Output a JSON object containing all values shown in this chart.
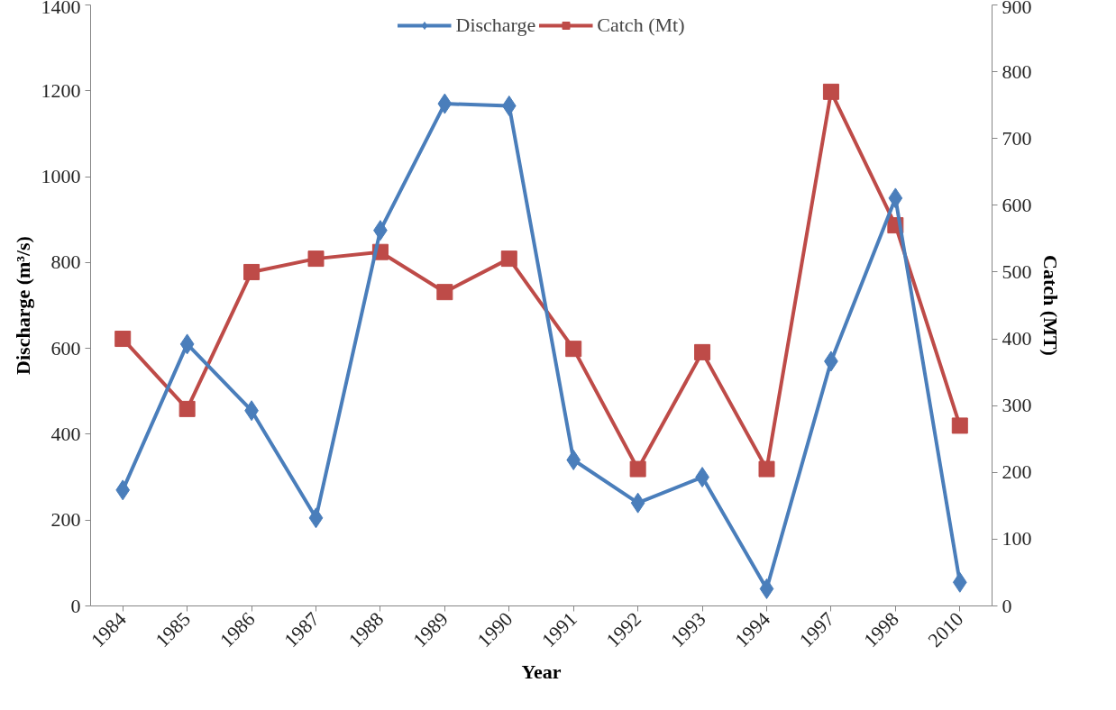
{
  "chart_data": {
    "type": "line",
    "xlabel": "Year",
    "ylabel": "Discharge (m³/s)",
    "y2label": "Catch (MT)",
    "categories": [
      "1984",
      "1985",
      "1986",
      "1987",
      "1988",
      "1989",
      "1990",
      "1991",
      "1992",
      "1993",
      "1994",
      "1997",
      "1998",
      "2010"
    ],
    "series": [
      {
        "name": "Discharge",
        "color": "#4a7ebb",
        "marker": "diamond",
        "values": [
          270,
          610,
          455,
          205,
          875,
          1170,
          1165,
          340,
          240,
          300,
          40,
          570,
          950,
          55
        ]
      },
      {
        "name": "Catch (Mt)",
        "color": "#be4b48",
        "marker": "square",
        "axis": "y2",
        "values": [
          400,
          295,
          500,
          520,
          530,
          470,
          520,
          385,
          205,
          380,
          205,
          770,
          570,
          270
        ]
      }
    ],
    "ylim": [
      0,
      1400
    ],
    "yticks": [
      0,
      200,
      400,
      600,
      800,
      1000,
      1200,
      1400
    ],
    "y2lim": [
      0,
      900
    ],
    "y2ticks": [
      0,
      100,
      200,
      300,
      400,
      500,
      600,
      700,
      800,
      900
    ],
    "grid": false,
    "legend": "top"
  }
}
